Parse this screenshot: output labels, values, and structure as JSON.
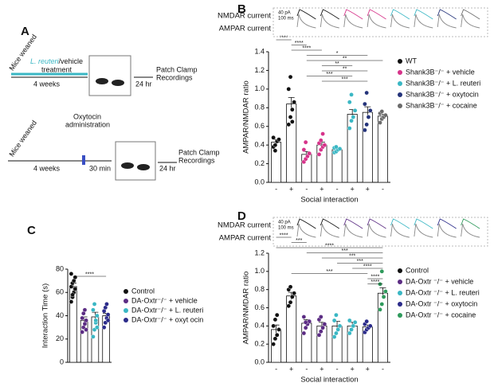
{
  "panel_a": {
    "label": "A",
    "timeline_1": {
      "start": "Mice weaned",
      "treatment_name": "L. reuteri",
      "treatment_rest": "/vehicle",
      "treatment_line2": "treatment",
      "duration": "4 weeks",
      "delay": "24 hr",
      "end_line1": "Patch Clamp",
      "end_line2": "Recordings"
    },
    "timeline_2": {
      "start": "Mice weaned",
      "drug": "Oxytocin",
      "drug_line2": "administration",
      "duration": "4 weeks",
      "wait": "30 min",
      "delay": "24 hr",
      "end_line1": "Patch Clamp",
      "end_line2": "Recordings"
    }
  },
  "chart_data": [
    {
      "type": "bar",
      "panel": "B",
      "trace_labels": [
        "NMDAR current",
        "AMPAR current"
      ],
      "scale_bar": [
        "40 pA",
        "100 ms"
      ],
      "ylabel": "AMPAR/NMDAR ratio",
      "xlabel": "Social interaction",
      "categories": [
        "-",
        "+",
        "-",
        "+",
        "-",
        "+",
        "+",
        "-"
      ],
      "values": [
        0.43,
        0.84,
        0.3,
        0.4,
        0.35,
        0.73,
        0.75,
        0.71
      ],
      "errors": [
        0.03,
        0.07,
        0.03,
        0.03,
        0.01,
        0.05,
        0.06,
        0.02
      ],
      "point_colors": [
        "#111111",
        "#111111",
        "#d6338a",
        "#d6338a",
        "#3ab7c4",
        "#3ab7c4",
        "#24337a",
        "#6b6b6b"
      ],
      "points": [
        [
          0.38,
          0.4,
          0.44,
          0.46,
          0.48,
          0.34
        ],
        [
          0.62,
          0.7,
          0.78,
          0.86,
          1.0,
          1.13,
          0.65
        ],
        [
          0.22,
          0.25,
          0.28,
          0.31,
          0.35,
          0.43
        ],
        [
          0.3,
          0.35,
          0.38,
          0.4,
          0.42,
          0.45,
          0.52
        ],
        [
          0.32,
          0.33,
          0.35,
          0.36,
          0.37,
          0.38
        ],
        [
          0.58,
          0.66,
          0.7,
          0.77,
          0.86,
          0.94
        ],
        [
          0.56,
          0.62,
          0.7,
          0.77,
          0.84,
          0.96,
          0.7
        ],
        [
          0.64,
          0.68,
          0.7,
          0.72,
          0.74,
          0.76
        ]
      ],
      "ylim": [
        0,
        1.4
      ],
      "yticks": [
        {
          "value": 0,
          "label": "0.0"
        },
        0.2,
        0.4,
        0.6,
        0.8,
        {
          "value": 1,
          "label": "1.0"
        },
        1.2,
        1.4
      ],
      "significance": [
        "****",
        "****",
        "****",
        "*",
        "**",
        "**",
        "**",
        "***",
        "***"
      ],
      "legend": [
        {
          "name": "WT",
          "color": "#111111"
        },
        {
          "name": "Shank3B⁻/⁻ + vehicle",
          "color": "#d6338a"
        },
        {
          "name": "Shank3B⁻/⁻ + L. reuteri",
          "color": "#3ab7c4"
        },
        {
          "name": "Shank3B⁻/⁻ + oxytocin",
          "color": "#24337a"
        },
        {
          "name": "Shank3B⁻/⁻ + cocaine",
          "color": "#6b6b6b"
        }
      ]
    },
    {
      "type": "bar",
      "panel": "C",
      "ylabel": "Interaction Time (s)",
      "values": [
        65,
        36,
        39,
        40
      ],
      "errors": [
        3,
        3,
        4,
        2
      ],
      "point_colors": [
        "#111111",
        "#5b2c83",
        "#3ab7c4",
        "#2b2b8a"
      ],
      "points": [
        [
          52,
          56,
          60,
          63,
          65,
          68,
          70,
          73,
          76,
          58
        ],
        [
          26,
          30,
          33,
          36,
          38,
          42,
          45,
          28
        ],
        [
          22,
          28,
          34,
          40,
          45,
          50,
          36,
          30
        ],
        [
          30,
          34,
          38,
          41,
          44,
          47,
          50,
          36
        ]
      ],
      "ylim": [
        0,
        80
      ],
      "yticks": [
        0,
        20,
        40,
        60,
        80
      ],
      "significance": [
        "****"
      ],
      "legend": [
        {
          "name": "Control",
          "color": "#111111"
        },
        {
          "name": "DA-Oxtr⁻/⁻ + vehicle",
          "color": "#5b2c83"
        },
        {
          "name": "DA-Oxtr⁻/⁻ + L. reuteri",
          "color": "#3ab7c4"
        },
        {
          "name": "DA-Oxtr⁻/⁻ + oxyt ocin",
          "color": "#2b2b8a"
        }
      ]
    },
    {
      "type": "bar",
      "panel": "D",
      "trace_labels": [
        "NMDAR current",
        "AMPAR current"
      ],
      "scale_bar": [
        "40 pA",
        "100 ms"
      ],
      "ylabel": "AMPAR/NMDAR ratio",
      "xlabel": "Social interaction",
      "categories": [
        "-",
        "+",
        "-",
        "+",
        "-",
        "+",
        "+",
        "-"
      ],
      "values": [
        0.36,
        0.73,
        0.43,
        0.4,
        0.4,
        0.4,
        0.39,
        0.76
      ],
      "errors": [
        0.05,
        0.04,
        0.04,
        0.04,
        0.05,
        0.04,
        0.02,
        0.06
      ],
      "point_colors": [
        "#111111",
        "#111111",
        "#5b2c83",
        "#5b2c83",
        "#3ab7c4",
        "#3ab7c4",
        "#2b2b8a",
        "#2f9a5c"
      ],
      "points": [
        [
          0.2,
          0.26,
          0.3,
          0.36,
          0.4,
          0.47,
          0.52
        ],
        [
          0.62,
          0.66,
          0.72,
          0.76,
          0.8,
          0.83
        ],
        [
          0.32,
          0.38,
          0.42,
          0.45,
          0.5,
          0.44
        ],
        [
          0.3,
          0.34,
          0.38,
          0.42,
          0.47,
          0.5
        ],
        [
          0.28,
          0.32,
          0.36,
          0.4,
          0.46,
          0.52
        ],
        [
          0.32,
          0.36,
          0.4,
          0.44,
          0.46
        ],
        [
          0.33,
          0.36,
          0.38,
          0.4,
          0.42,
          0.45
        ],
        [
          0.58,
          0.64,
          0.72,
          0.78,
          0.86,
          1.0
        ]
      ],
      "ylim": [
        0,
        1.2
      ],
      "yticks": [
        {
          "value": 0,
          "label": "0.0"
        },
        0.2,
        0.4,
        0.6,
        0.8,
        {
          "value": 1,
          "label": "1.0"
        },
        1.2
      ],
      "significance": [
        "****",
        "***",
        "****",
        "***",
        "***",
        "***",
        "****",
        "***",
        "****",
        "****"
      ],
      "legend": [
        {
          "name": "Control",
          "color": "#111111"
        },
        {
          "name": "DA-Oxtr ⁻/⁻ + vehicle",
          "color": "#5b2c83"
        },
        {
          "name": "DA-Oxtr ⁻/⁻ + L. reuteri",
          "color": "#3ab7c4"
        },
        {
          "name": "DA-Oxtr ⁻/⁻ + oxytocin",
          "color": "#2b2b8a"
        },
        {
          "name": "DA-Oxtr ⁻/⁻ + cocaine",
          "color": "#2f9a5c"
        }
      ]
    }
  ]
}
